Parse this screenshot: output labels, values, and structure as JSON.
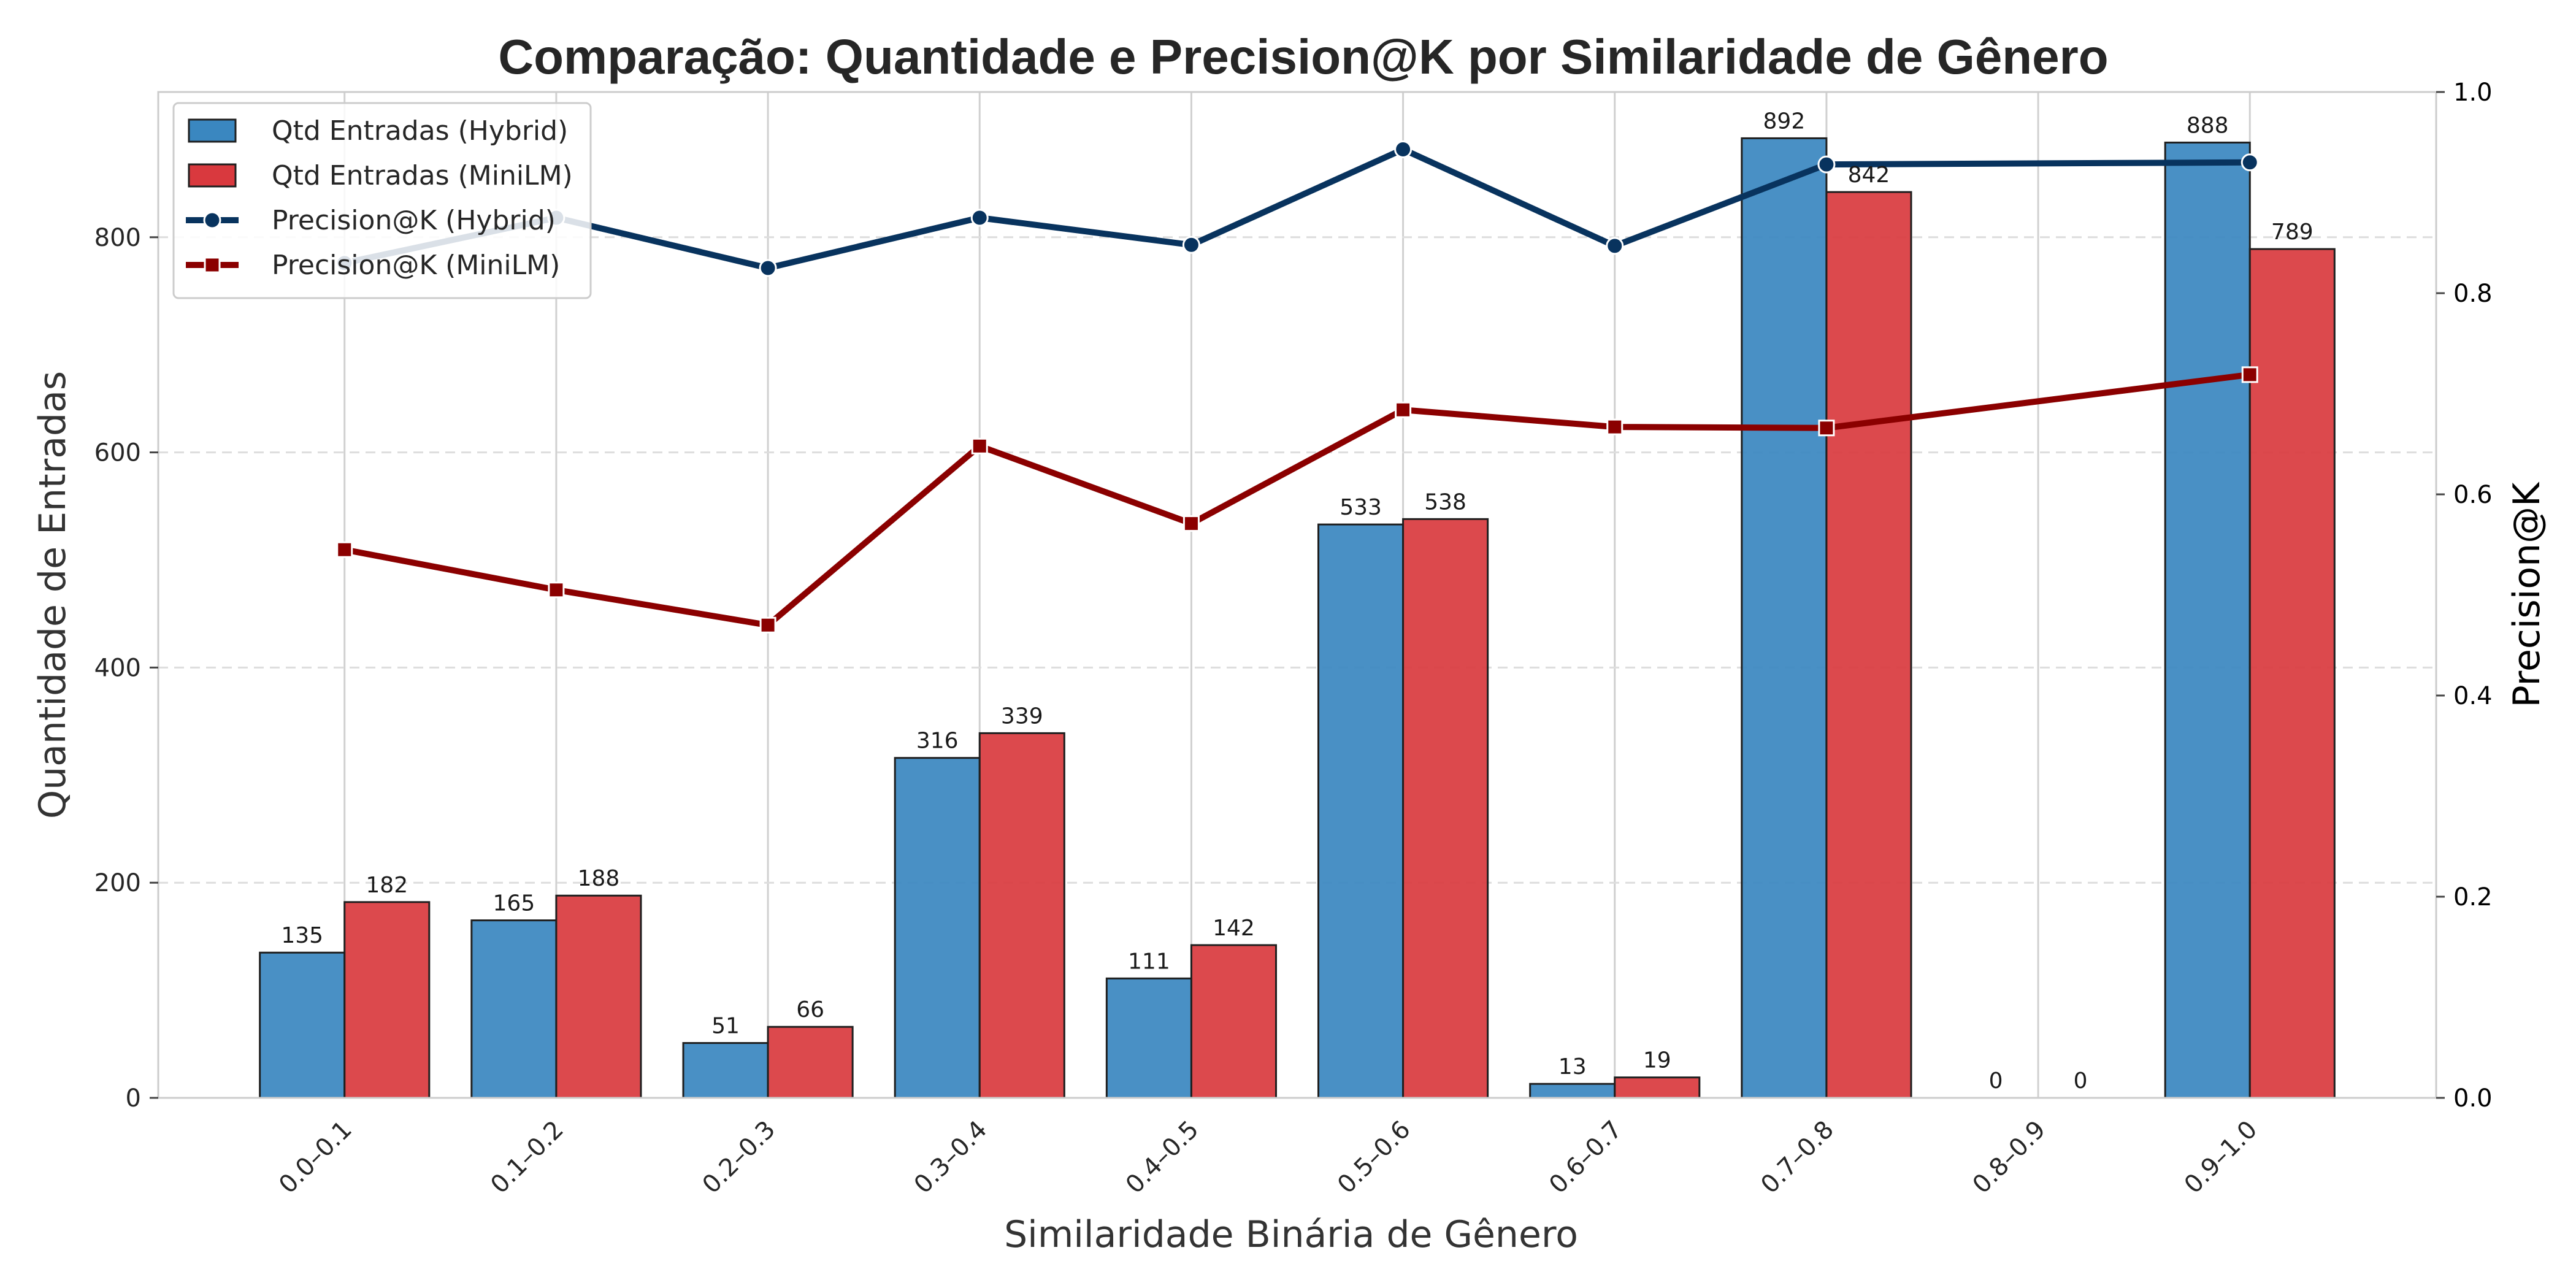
{
  "chart_data": {
    "type": "bar",
    "title": "Comparação: Quantidade e Precision@K por Similaridade de Gênero",
    "xlabel": "Similaridade Binária de Gênero",
    "ylabel": "Quantidade de Entradas",
    "y2label": "Precision@K",
    "categories": [
      "0.0–0.1",
      "0.1–0.2",
      "0.2–0.3",
      "0.3–0.4",
      "0.4–0.5",
      "0.5–0.6",
      "0.6–0.7",
      "0.7–0.8",
      "0.8–0.9",
      "0.9–1.0"
    ],
    "ylim": [
      0,
      935
    ],
    "y2lim": [
      0,
      1.0
    ],
    "yticks": [
      0,
      200,
      400,
      600,
      800
    ],
    "y2ticks": [
      0.0,
      0.2,
      0.4,
      0.6,
      0.8,
      1.0
    ],
    "ytick_labels": [
      "0",
      "200",
      "400",
      "600",
      "800"
    ],
    "y2tick_labels": [
      "0.0",
      "0.2",
      "0.4",
      "0.6",
      "0.8",
      "1.0"
    ],
    "grid": "x solid, y dashed",
    "legend_position": "top-left",
    "bar_series": [
      {
        "name": "Qtd Entradas (Hybrid)",
        "color": "#3a87c0",
        "values": [
          135,
          165,
          51,
          316,
          111,
          533,
          13,
          892,
          0,
          888
        ],
        "labels": [
          "135",
          "165",
          "51",
          "316",
          "111",
          "533",
          "13",
          "892",
          "0",
          "888"
        ]
      },
      {
        "name": "Qtd Entradas (MiniLM)",
        "color": "#d9393e",
        "values": [
          182,
          188,
          66,
          339,
          142,
          538,
          19,
          842,
          0,
          789
        ],
        "labels": [
          "182",
          "188",
          "66",
          "339",
          "142",
          "538",
          "19",
          "842",
          "0",
          "789"
        ]
      }
    ],
    "line_series": [
      {
        "name": "Precision@K (Hybrid)",
        "color": "#08335e",
        "marker": "circle",
        "x_index": [
          0,
          1,
          2,
          3,
          4,
          5,
          6,
          7,
          9
        ],
        "values": [
          0.83,
          0.875,
          0.825,
          0.875,
          0.848,
          0.943,
          0.847,
          0.928,
          0.93
        ]
      },
      {
        "name": "Precision@K (MiniLM)",
        "color": "#8b0000",
        "marker": "square",
        "x_index": [
          0,
          1,
          2,
          3,
          4,
          5,
          6,
          7,
          9
        ],
        "values": [
          0.545,
          0.505,
          0.47,
          0.648,
          0.571,
          0.684,
          0.667,
          0.666,
          0.719
        ]
      }
    ]
  }
}
